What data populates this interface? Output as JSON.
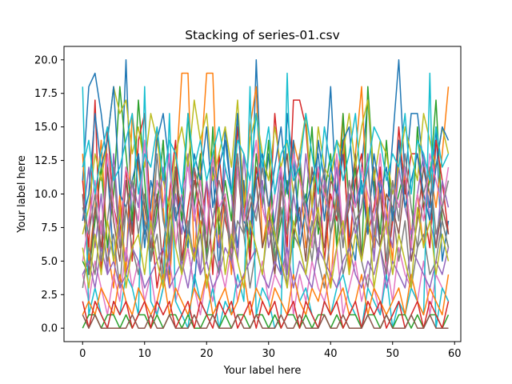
{
  "chart_data": {
    "type": "line",
    "title": "Stacking of series-01.csv",
    "xlabel": "Your label here",
    "ylabel": "Your label here",
    "xlim": [
      -3,
      61
    ],
    "ylim": [
      -1,
      21
    ],
    "x_ticks": [
      0,
      10,
      20,
      30,
      40,
      50,
      60
    ],
    "y_ticks": [
      0.0,
      2.5,
      5.0,
      7.5,
      10.0,
      12.5,
      15.0,
      17.5,
      20.0
    ],
    "x_tick_labels": [
      "0",
      "10",
      "20",
      "30",
      "40",
      "50",
      "60"
    ],
    "y_tick_labels": [
      "0.0",
      "2.5",
      "5.0",
      "7.5",
      "10.0",
      "12.5",
      "15.0",
      "17.5",
      "20.0"
    ],
    "grid": false,
    "legend": "none",
    "x": [
      0,
      1,
      2,
      3,
      4,
      5,
      6,
      7,
      8,
      9,
      10,
      11,
      12,
      13,
      14,
      15,
      16,
      17,
      18,
      19,
      20,
      21,
      22,
      23,
      24,
      25,
      26,
      27,
      28,
      29,
      30,
      31,
      32,
      33,
      34,
      35,
      36,
      37,
      38,
      39,
      40,
      41,
      42,
      43,
      44,
      45,
      46,
      47,
      48,
      49,
      50,
      51,
      52,
      53,
      54,
      55,
      56,
      57,
      58,
      59
    ],
    "colors": [
      "#1f77b4",
      "#ff7f0e",
      "#2ca02c",
      "#d62728",
      "#9467bd",
      "#8c564b",
      "#e377c2",
      "#7f7f7f",
      "#bcbd22",
      "#17becf"
    ],
    "series": [
      {
        "values": [
          11,
          18,
          19,
          16,
          12,
          5,
          8,
          20,
          7,
          13,
          6,
          11,
          9,
          14,
          4,
          12,
          8,
          6,
          3,
          9,
          7,
          12,
          4,
          15,
          10,
          6,
          11,
          5,
          20,
          9,
          13,
          7,
          4,
          16,
          12,
          8,
          10,
          6,
          14,
          11,
          18,
          9,
          13,
          7,
          5,
          12,
          17,
          10,
          6,
          8,
          14,
          20,
          11,
          16,
          16,
          12,
          9,
          15,
          5,
          8
        ]
      },
      {
        "values": [
          13,
          5,
          9,
          14,
          6,
          3,
          10,
          4,
          16,
          12,
          8,
          7,
          15,
          9,
          3,
          11,
          19,
          19,
          5,
          12,
          19,
          19,
          6,
          10,
          4,
          13,
          8,
          15,
          18,
          6,
          9,
          4,
          11,
          7,
          14,
          12,
          6,
          9,
          5,
          11,
          3,
          10,
          16,
          4,
          13,
          18,
          8,
          6,
          12,
          9,
          5,
          14,
          11,
          7,
          10,
          6,
          12,
          9,
          13,
          18
        ]
      },
      {
        "values": [
          5,
          4,
          8,
          12,
          6,
          10,
          18,
          13,
          8,
          17,
          11,
          5,
          9,
          14,
          6,
          12,
          8,
          16,
          9,
          13,
          5,
          15,
          7,
          11,
          8,
          16,
          10,
          6,
          13,
          9,
          14,
          5,
          8,
          11,
          6,
          12,
          9,
          15,
          7,
          10,
          13,
          6,
          16,
          9,
          12,
          5,
          18,
          11,
          7,
          14,
          8,
          10,
          12,
          6,
          15,
          9,
          11,
          17,
          8,
          6
        ]
      },
      {
        "values": [
          11,
          6,
          17,
          4,
          15,
          9,
          7,
          12,
          5,
          14,
          16,
          8,
          3,
          6,
          10,
          14,
          5,
          9,
          12,
          7,
          11,
          4,
          13,
          8,
          6,
          15,
          10,
          5,
          12,
          9,
          7,
          16,
          11,
          6,
          17,
          17,
          15,
          9,
          12,
          5,
          10,
          8,
          14,
          6,
          11,
          13,
          7,
          9,
          12,
          4,
          8,
          15,
          10,
          13,
          13,
          9,
          6,
          14,
          11,
          7
        ]
      },
      {
        "values": [
          8,
          12,
          6,
          10,
          4,
          13,
          7,
          5,
          11,
          9,
          14,
          6,
          8,
          12,
          5,
          10,
          7,
          13,
          9,
          4,
          11,
          8,
          6,
          12,
          10,
          5,
          13,
          7,
          9,
          11,
          6,
          8,
          12,
          4,
          10,
          7,
          13,
          9,
          5,
          11,
          8,
          12,
          6,
          10,
          7,
          9,
          13,
          5,
          11,
          8,
          6,
          12,
          9,
          7,
          10,
          13,
          8,
          6,
          11,
          9
        ]
      },
      {
        "values": [
          10,
          4,
          9,
          6,
          12,
          8,
          5,
          11,
          7,
          13,
          9,
          6,
          10,
          4,
          8,
          12,
          5,
          7,
          11,
          9,
          6,
          13,
          8,
          10,
          5,
          12,
          7,
          9,
          11,
          6,
          8,
          4,
          10,
          13,
          7,
          9,
          5,
          12,
          8,
          6,
          11,
          10,
          7,
          9,
          13,
          5,
          8,
          12,
          6,
          10,
          9,
          7,
          11,
          5,
          8,
          12,
          10,
          6,
          9,
          7
        ]
      },
      {
        "values": [
          4,
          2,
          5,
          3,
          1,
          4,
          2,
          6,
          3,
          5,
          2,
          4,
          1,
          3,
          5,
          2,
          4,
          6,
          3,
          1,
          4,
          2,
          5,
          3,
          6,
          2,
          4,
          1,
          3,
          5,
          2,
          4,
          3,
          6,
          1,
          4,
          2,
          5,
          3,
          2,
          4,
          6,
          1,
          3,
          5,
          2,
          4,
          3,
          1,
          5,
          2,
          6,
          4,
          3,
          2,
          5,
          1,
          4,
          3,
          2
        ]
      },
      {
        "values": [
          3,
          6,
          4,
          8,
          5,
          7,
          3,
          9,
          6,
          4,
          8,
          5,
          7,
          3,
          6,
          9,
          4,
          8,
          5,
          7,
          3,
          6,
          4,
          9,
          5,
          8,
          7,
          3,
          6,
          4,
          8,
          5,
          9,
          3,
          7,
          6,
          4,
          8,
          5,
          3,
          7,
          9,
          4,
          6,
          8,
          5,
          3,
          7,
          6,
          4,
          9,
          5,
          8,
          3,
          6,
          7,
          4,
          5,
          8,
          6
        ]
      },
      {
        "values": [
          7,
          9,
          13,
          11,
          14,
          18,
          16,
          17,
          13,
          15,
          12,
          16,
          14,
          11,
          9,
          13,
          15,
          12,
          17,
          14,
          16,
          11,
          13,
          15,
          12,
          17,
          9,
          14,
          16,
          13,
          11,
          15,
          12,
          14,
          10,
          13,
          16,
          9,
          15,
          12,
          11,
          14,
          13,
          16,
          12,
          15,
          17,
          11,
          14,
          13,
          10,
          12,
          15,
          13,
          11,
          16,
          14,
          12,
          15,
          13
        ]
      },
      {
        "values": [
          18,
          1,
          3,
          1,
          0,
          2,
          1,
          4,
          3,
          1,
          18,
          2,
          1,
          3,
          16,
          2,
          1,
          0,
          4,
          2,
          1,
          3,
          0,
          2,
          1,
          4,
          2,
          18,
          1,
          3,
          2,
          0,
          1,
          19,
          4,
          2,
          3,
          1,
          0,
          2,
          1,
          3,
          4,
          2,
          1,
          0,
          3,
          2,
          1,
          4,
          0,
          2,
          1,
          3,
          2,
          1,
          19,
          0,
          3,
          2
        ]
      },
      {
        "values": [
          8,
          10,
          16,
          12,
          14,
          18,
          10,
          9,
          11,
          13,
          7,
          9,
          14,
          16,
          12,
          8,
          10,
          6,
          13,
          11,
          15,
          9,
          12,
          14,
          10,
          16,
          8,
          7,
          11,
          13,
          9,
          12,
          15,
          10,
          14,
          6,
          9,
          11,
          13,
          8,
          12,
          10,
          14,
          15,
          9,
          11,
          7,
          13,
          10,
          12,
          8,
          14,
          9,
          11,
          13,
          10,
          8,
          12,
          15,
          14
        ]
      },
      {
        "values": [
          1,
          2,
          1,
          3,
          2,
          1,
          4,
          2,
          1,
          3,
          2,
          1,
          2,
          4,
          1,
          3,
          2,
          1,
          3,
          2,
          4,
          1,
          2,
          3,
          1,
          2,
          4,
          1,
          3,
          2,
          1,
          3,
          2,
          1,
          4,
          2,
          1,
          3,
          2,
          4,
          1,
          2,
          3,
          1,
          2,
          4,
          1,
          3,
          2,
          1,
          2,
          3,
          1,
          4,
          2,
          1,
          3,
          2,
          1,
          4
        ]
      },
      {
        "values": [
          0,
          1,
          1,
          0,
          1,
          1,
          0,
          1,
          0,
          1,
          1,
          0,
          1,
          0,
          1,
          1,
          0,
          1,
          0,
          0,
          1,
          1,
          0,
          1,
          0,
          1,
          1,
          0,
          1,
          1,
          0,
          1,
          0,
          1,
          1,
          0,
          1,
          0,
          1,
          1,
          0,
          1,
          0,
          1,
          1,
          0,
          1,
          1,
          0,
          1,
          0,
          1,
          1,
          0,
          1,
          0,
          1,
          1,
          0,
          1
        ]
      },
      {
        "values": [
          2,
          0,
          2,
          1,
          0,
          2,
          1,
          2,
          0,
          1,
          2,
          0,
          2,
          1,
          2,
          0,
          1,
          2,
          0,
          2,
          1,
          0,
          2,
          1,
          2,
          0,
          1,
          2,
          0,
          2,
          1,
          2,
          0,
          1,
          2,
          0,
          2,
          1,
          0,
          2,
          1,
          2,
          0,
          1,
          2,
          0,
          2,
          1,
          2,
          0,
          1,
          2,
          0,
          1,
          2,
          0,
          2,
          1,
          0,
          2
        ]
      },
      {
        "values": [
          4,
          5,
          3,
          6,
          4,
          5,
          3,
          4,
          6,
          5,
          3,
          4,
          5,
          6,
          3,
          4,
          5,
          3,
          6,
          4,
          5,
          3,
          4,
          6,
          5,
          3,
          4,
          5,
          6,
          4,
          3,
          5,
          4,
          6,
          3,
          5,
          4,
          3,
          6,
          5,
          4,
          3,
          5,
          6,
          4,
          3,
          5,
          4,
          6,
          3,
          5,
          4,
          3,
          6,
          5,
          4,
          3,
          5,
          4,
          6
        ]
      },
      {
        "values": [
          1,
          0,
          1,
          0,
          0,
          0,
          0,
          0,
          1,
          0,
          0,
          1,
          0,
          0,
          1,
          0,
          0,
          0,
          1,
          0,
          0,
          1,
          0,
          0,
          0,
          1,
          0,
          0,
          1,
          0,
          0,
          0,
          1,
          0,
          0,
          1,
          0,
          0,
          0,
          1,
          0,
          0,
          1,
          0,
          0,
          0,
          1,
          0,
          0,
          1,
          0,
          0,
          0,
          1,
          0,
          0,
          1,
          0,
          0,
          0
        ]
      },
      {
        "values": [
          5,
          8,
          11,
          7,
          13,
          9,
          6,
          12,
          10,
          8,
          14,
          7,
          11,
          9,
          13,
          6,
          10,
          12,
          8,
          11,
          7,
          13,
          9,
          10,
          6,
          12,
          8,
          11,
          14,
          9,
          7,
          10,
          12,
          8,
          13,
          11,
          9,
          6,
          12,
          10,
          8,
          13,
          7,
          11,
          9,
          12,
          10,
          8,
          13,
          7,
          11,
          9,
          12,
          6,
          10,
          8,
          13,
          11,
          9,
          12
        ]
      },
      {
        "values": [
          9,
          7,
          10,
          5,
          8,
          12,
          6,
          9,
          11,
          7,
          10,
          5,
          13,
          8,
          6,
          11,
          9,
          7,
          12,
          10,
          5,
          8,
          11,
          9,
          6,
          13,
          7,
          10,
          8,
          12,
          9,
          6,
          11,
          7,
          10,
          13,
          8,
          5,
          9,
          12,
          7,
          10,
          6,
          11,
          8,
          9,
          12,
          7,
          10,
          5,
          11,
          8,
          13,
          9,
          6,
          10,
          12,
          7,
          9,
          11
        ]
      },
      {
        "values": [
          6,
          3,
          7,
          4,
          8,
          5,
          9,
          3,
          6,
          7,
          4,
          8,
          5,
          3,
          9,
          6,
          4,
          7,
          5,
          8,
          3,
          6,
          9,
          4,
          7,
          5,
          3,
          8,
          6,
          4,
          9,
          7,
          5,
          3,
          8,
          6,
          4,
          7,
          9,
          5,
          3,
          6,
          8,
          4,
          7,
          5,
          9,
          3,
          6,
          8,
          4,
          7,
          5,
          3,
          9,
          6,
          8,
          4,
          7,
          5
        ]
      },
      {
        "values": [
          12,
          14,
          10,
          13,
          15,
          11,
          12,
          14,
          16,
          10,
          13,
          12,
          15,
          11,
          14,
          13,
          10,
          16,
          12,
          14,
          11,
          13,
          15,
          12,
          10,
          14,
          13,
          11,
          16,
          12,
          15,
          10,
          13,
          14,
          11,
          12,
          16,
          13,
          10,
          15,
          12,
          14,
          11,
          13,
          16,
          10,
          12,
          15,
          14,
          11,
          13,
          12,
          16,
          10,
          14,
          13,
          11,
          15,
          12,
          13
        ]
      }
    ]
  }
}
